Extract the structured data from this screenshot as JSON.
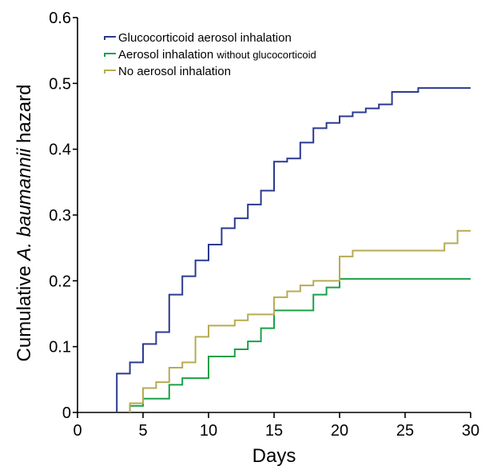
{
  "chart_data": {
    "type": "line",
    "step": true,
    "xlabel": "Days",
    "ylabel_prefix": "Cumulative ",
    "ylabel_italic": "A. baumannii",
    "ylabel_suffix": " hazard",
    "xlim": [
      0,
      30
    ],
    "ylim": [
      0,
      0.6
    ],
    "xticks": [
      0,
      5,
      10,
      15,
      20,
      25,
      30
    ],
    "xtick_labels": [
      "0",
      "5",
      "10",
      "15",
      "20",
      "25",
      "30"
    ],
    "yticks": [
      0,
      0.1,
      0.2,
      0.3,
      0.4,
      0.5,
      0.6
    ],
    "ytick_labels": [
      "0",
      "0.1",
      "0.2",
      "0.3",
      "0.4",
      "0.5",
      "0.6"
    ],
    "grid": false,
    "legend_position": "top-left",
    "series": [
      {
        "name": "Glucocorticoid aerosol inhalation",
        "name_main": "Glucocorticoid aerosol inhalation",
        "name_small": "",
        "color": "#2b3a8f",
        "x": [
          3,
          4,
          5,
          6,
          7,
          8,
          9,
          10,
          11,
          12,
          13,
          14,
          15,
          16,
          17,
          18,
          19,
          20,
          21,
          22,
          23,
          24,
          26,
          30
        ],
        "y": [
          0.059,
          0.076,
          0.104,
          0.122,
          0.179,
          0.207,
          0.231,
          0.255,
          0.28,
          0.295,
          0.316,
          0.337,
          0.381,
          0.386,
          0.41,
          0.432,
          0.44,
          0.45,
          0.456,
          0.462,
          0.468,
          0.487,
          0.493,
          0.493
        ]
      },
      {
        "name": "Aerosol inhalation without glucocorticoid",
        "name_main": "Aerosol inhalation ",
        "name_small": "without glucocorticoid",
        "color": "#1aa048",
        "x": [
          4,
          5,
          7,
          8,
          10,
          12,
          13,
          14,
          15,
          18,
          19,
          20,
          30
        ],
        "y": [
          0.01,
          0.021,
          0.042,
          0.052,
          0.085,
          0.096,
          0.108,
          0.128,
          0.155,
          0.179,
          0.19,
          0.203,
          0.203
        ]
      },
      {
        "name": "No aerosol inhalation",
        "name_main": "No aerosol inhalation",
        "name_small": "",
        "color": "#b7ab52",
        "x": [
          4,
          5,
          6,
          7,
          8,
          9,
          10,
          12,
          13,
          15,
          16,
          17,
          18,
          20,
          21,
          28,
          29,
          30
        ],
        "y": [
          0.014,
          0.037,
          0.046,
          0.068,
          0.076,
          0.115,
          0.132,
          0.14,
          0.149,
          0.175,
          0.184,
          0.193,
          0.2,
          0.237,
          0.246,
          0.257,
          0.276,
          0.276
        ]
      }
    ]
  }
}
